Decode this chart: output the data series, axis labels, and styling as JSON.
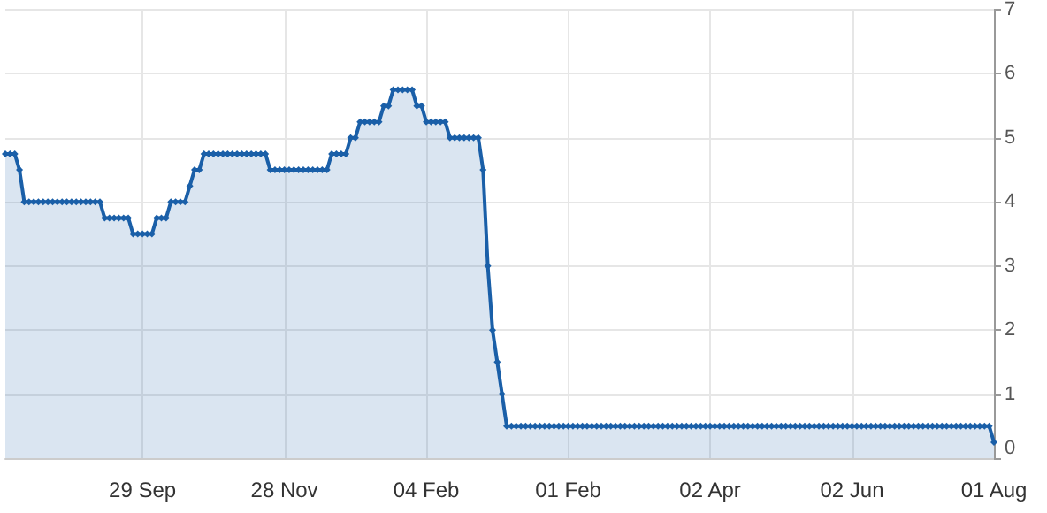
{
  "chart_data": {
    "type": "area",
    "categories": [
      null,
      null,
      null,
      null,
      null,
      null,
      null,
      null,
      null,
      null,
      null,
      null,
      null,
      null,
      null,
      null,
      null,
      null,
      null,
      null,
      null,
      null,
      null,
      null,
      null,
      null,
      null,
      null,
      null,
      "29 Sep",
      null,
      null,
      null,
      null,
      null,
      null,
      null,
      null,
      null,
      null,
      null,
      null,
      null,
      null,
      null,
      null,
      null,
      null,
      null,
      null,
      null,
      null,
      null,
      null,
      null,
      null,
      null,
      null,
      null,
      "28 Nov",
      null,
      null,
      null,
      null,
      null,
      null,
      null,
      null,
      null,
      null,
      null,
      null,
      null,
      null,
      null,
      null,
      null,
      null,
      null,
      null,
      null,
      null,
      null,
      null,
      null,
      null,
      null,
      null,
      null,
      "04 Feb",
      null,
      null,
      null,
      null,
      null,
      null,
      null,
      null,
      null,
      null,
      null,
      null,
      null,
      null,
      null,
      null,
      null,
      null,
      null,
      null,
      null,
      null,
      null,
      null,
      null,
      null,
      null,
      null,
      null,
      "01 Feb",
      null,
      null,
      null,
      null,
      null,
      null,
      null,
      null,
      null,
      null,
      null,
      null,
      null,
      null,
      null,
      null,
      null,
      null,
      null,
      null,
      null,
      null,
      null,
      null,
      null,
      null,
      null,
      null,
      null,
      "02 Apr",
      null,
      null,
      null,
      null,
      null,
      null,
      null,
      null,
      null,
      null,
      null,
      null,
      null,
      null,
      null,
      null,
      null,
      null,
      null,
      null,
      null,
      null,
      null,
      null,
      null,
      null,
      null,
      null,
      null,
      "02 Jun",
      null,
      null,
      null,
      null,
      null,
      null,
      null,
      null,
      null,
      null,
      null,
      null,
      null,
      null,
      null,
      null,
      null,
      null,
      null,
      null,
      null,
      null,
      null,
      null,
      null,
      null,
      null,
      null,
      null,
      "01 Aug"
    ],
    "series": [
      {
        "color": "#1a5fa8",
        "values": [
          4.75,
          4.75,
          4.75,
          4.5,
          4.0,
          4.0,
          4.0,
          4.0,
          4.0,
          4.0,
          4.0,
          4.0,
          4.0,
          4.0,
          4.0,
          4.0,
          4.0,
          4.0,
          4.0,
          4.0,
          4.0,
          3.75,
          3.75,
          3.75,
          3.75,
          3.75,
          3.75,
          3.5,
          3.5,
          3.5,
          3.5,
          3.5,
          3.75,
          3.75,
          3.75,
          4.0,
          4.0,
          4.0,
          4.0,
          4.25,
          4.5,
          4.5,
          4.75,
          4.75,
          4.75,
          4.75,
          4.75,
          4.75,
          4.75,
          4.75,
          4.75,
          4.75,
          4.75,
          4.75,
          4.75,
          4.75,
          4.5,
          4.5,
          4.5,
          4.5,
          4.5,
          4.5,
          4.5,
          4.5,
          4.5,
          4.5,
          4.5,
          4.5,
          4.5,
          4.75,
          4.75,
          4.75,
          4.75,
          5.0,
          5.0,
          5.25,
          5.25,
          5.25,
          5.25,
          5.25,
          5.5,
          5.5,
          5.75,
          5.75,
          5.75,
          5.75,
          5.75,
          5.5,
          5.5,
          5.25,
          5.25,
          5.25,
          5.25,
          5.25,
          5.0,
          5.0,
          5.0,
          5.0,
          5.0,
          5.0,
          5.0,
          4.5,
          3.0,
          2.0,
          1.5,
          1.0,
          0.5,
          0.5,
          0.5,
          0.5,
          0.5,
          0.5,
          0.5,
          0.5,
          0.5,
          0.5,
          0.5,
          0.5,
          0.5,
          0.5,
          0.5,
          0.5,
          0.5,
          0.5,
          0.5,
          0.5,
          0.5,
          0.5,
          0.5,
          0.5,
          0.5,
          0.5,
          0.5,
          0.5,
          0.5,
          0.5,
          0.5,
          0.5,
          0.5,
          0.5,
          0.5,
          0.5,
          0.5,
          0.5,
          0.5,
          0.5,
          0.5,
          0.5,
          0.5,
          0.5,
          0.5,
          0.5,
          0.5,
          0.5,
          0.5,
          0.5,
          0.5,
          0.5,
          0.5,
          0.5,
          0.5,
          0.5,
          0.5,
          0.5,
          0.5,
          0.5,
          0.5,
          0.5,
          0.5,
          0.5,
          0.5,
          0.5,
          0.5,
          0.5,
          0.5,
          0.5,
          0.5,
          0.5,
          0.5,
          0.5,
          0.5,
          0.5,
          0.5,
          0.5,
          0.5,
          0.5,
          0.5,
          0.5,
          0.5,
          0.5,
          0.5,
          0.5,
          0.5,
          0.5,
          0.5,
          0.5,
          0.5,
          0.5,
          0.5,
          0.5,
          0.5,
          0.5,
          0.5,
          0.5,
          0.5,
          0.5,
          0.5,
          0.5,
          0.5,
          0.25
        ]
      }
    ],
    "ylim": [
      0,
      7
    ],
    "yticks": [
      0,
      1,
      2,
      3,
      4,
      5,
      6,
      7
    ],
    "grid": true,
    "marker": "diamond",
    "line_style": "solid"
  }
}
